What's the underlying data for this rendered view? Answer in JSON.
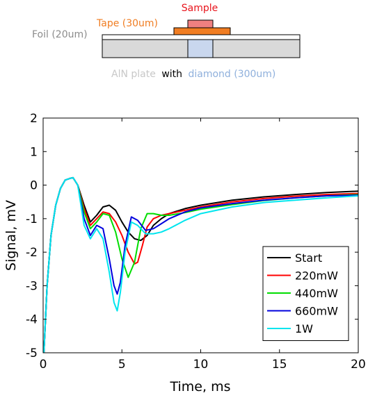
{
  "diagram": {
    "sample_label": "Sample",
    "tape_label": "Tape (30um)",
    "foil_label": "Foil (20um)",
    "plate_label_part1": "AlN plate",
    "plate_label_part2": "with",
    "plate_label_part3": "diamond (300um)",
    "colors": {
      "sample": "#f08080",
      "sample_text": "#e8131b",
      "tape": "#f07d22",
      "foil_text": "#8c8c8c",
      "plate": "#d9d9d9",
      "diamond": "#c9d7ee",
      "plate_text": "#c8c8c8",
      "diamond_text": "#8fb0dc"
    }
  },
  "chart_data": {
    "type": "line",
    "title": "",
    "xlabel": "Time, ms",
    "ylabel": "Signal, mV",
    "xlim": [
      0,
      20
    ],
    "ylim": [
      -5,
      2
    ],
    "xticks": [
      0,
      5,
      10,
      15,
      20
    ],
    "yticks": [
      2,
      1,
      0,
      -1,
      -2,
      -3,
      -4,
      -5
    ],
    "legend_position": "bottom-right",
    "series": [
      {
        "name": "Start",
        "color": "#000000",
        "x": [
          0.05,
          0.25,
          0.5,
          0.8,
          1.1,
          1.4,
          1.7,
          1.9,
          2.2,
          2.6,
          3.0,
          3.4,
          3.8,
          4.2,
          4.6,
          5.0,
          5.4,
          5.8,
          6.2,
          6.6,
          7.0,
          7.5,
          8.0,
          9.0,
          10.0,
          12.0,
          14.0,
          16.0,
          18.0,
          20.0
        ],
        "y": [
          -5.0,
          -3.0,
          -1.5,
          -0.6,
          -0.1,
          0.15,
          0.2,
          0.22,
          0.0,
          -0.6,
          -1.1,
          -0.9,
          -0.65,
          -0.6,
          -0.75,
          -1.1,
          -1.4,
          -1.6,
          -1.65,
          -1.5,
          -1.2,
          -1.0,
          -0.85,
          -0.7,
          -0.6,
          -0.45,
          -0.35,
          -0.28,
          -0.22,
          -0.18
        ]
      },
      {
        "name": "220mW",
        "color": "#ff0000",
        "x": [
          0.05,
          0.25,
          0.5,
          0.8,
          1.1,
          1.4,
          1.7,
          1.9,
          2.2,
          2.6,
          3.0,
          3.4,
          3.8,
          4.2,
          4.6,
          5.0,
          5.4,
          5.8,
          6.0,
          6.3,
          6.6,
          7.0,
          7.5,
          8.0,
          9.0,
          10.0,
          12.0,
          14.0,
          16.0,
          18.0,
          20.0
        ],
        "y": [
          -5.0,
          -3.0,
          -1.5,
          -0.6,
          -0.1,
          0.15,
          0.2,
          0.22,
          0.0,
          -0.7,
          -1.2,
          -1.0,
          -0.8,
          -0.85,
          -1.1,
          -1.5,
          -2.0,
          -2.35,
          -2.3,
          -1.8,
          -1.25,
          -1.0,
          -0.9,
          -0.85,
          -0.75,
          -0.65,
          -0.5,
          -0.4,
          -0.33,
          -0.28,
          -0.25
        ]
      },
      {
        "name": "440mW",
        "color": "#00dd00",
        "x": [
          0.05,
          0.25,
          0.5,
          0.8,
          1.1,
          1.4,
          1.7,
          1.9,
          2.2,
          2.6,
          3.0,
          3.4,
          3.8,
          4.2,
          4.6,
          5.0,
          5.4,
          5.8,
          6.2,
          6.6,
          7.0,
          7.5,
          8.0,
          9.0,
          10.0,
          12.0,
          14.0,
          16.0,
          18.0,
          20.0
        ],
        "y": [
          -5.0,
          -3.0,
          -1.5,
          -0.6,
          -0.1,
          0.15,
          0.2,
          0.22,
          0.0,
          -0.8,
          -1.3,
          -1.1,
          -0.85,
          -0.9,
          -1.4,
          -2.2,
          -2.75,
          -2.3,
          -1.3,
          -0.85,
          -0.85,
          -0.9,
          -0.9,
          -0.82,
          -0.72,
          -0.58,
          -0.46,
          -0.38,
          -0.32,
          -0.28
        ]
      },
      {
        "name": "660mW",
        "color": "#0000dd",
        "x": [
          0.05,
          0.25,
          0.5,
          0.8,
          1.1,
          1.4,
          1.7,
          1.9,
          2.2,
          2.6,
          3.0,
          3.4,
          3.8,
          4.2,
          4.5,
          4.7,
          4.9,
          5.2,
          5.6,
          6.0,
          6.5,
          7.0,
          7.5,
          8.0,
          9.0,
          10.0,
          12.0,
          14.0,
          16.0,
          18.0,
          20.0
        ],
        "y": [
          -5.0,
          -3.0,
          -1.5,
          -0.6,
          -0.1,
          0.15,
          0.2,
          0.22,
          0.0,
          -1.0,
          -1.5,
          -1.2,
          -1.3,
          -2.2,
          -3.0,
          -3.25,
          -2.9,
          -1.8,
          -0.95,
          -1.05,
          -1.35,
          -1.3,
          -1.15,
          -1.0,
          -0.8,
          -0.68,
          -0.55,
          -0.45,
          -0.38,
          -0.32,
          -0.3
        ]
      },
      {
        "name": "1W",
        "color": "#00e5ee",
        "x": [
          0.05,
          0.25,
          0.5,
          0.8,
          1.1,
          1.4,
          1.7,
          1.9,
          2.2,
          2.6,
          3.0,
          3.4,
          3.8,
          4.2,
          4.5,
          4.7,
          4.9,
          5.2,
          5.6,
          6.0,
          6.5,
          7.0,
          7.5,
          8.0,
          9.0,
          10.0,
          12.0,
          14.0,
          16.0,
          18.0,
          20.0
        ],
        "y": [
          -5.0,
          -3.0,
          -1.5,
          -0.6,
          -0.1,
          0.15,
          0.2,
          0.22,
          0.0,
          -1.2,
          -1.6,
          -1.3,
          -1.6,
          -2.6,
          -3.5,
          -3.75,
          -3.2,
          -2.0,
          -1.1,
          -1.2,
          -1.45,
          -1.45,
          -1.4,
          -1.3,
          -1.05,
          -0.85,
          -0.65,
          -0.52,
          -0.45,
          -0.38,
          -0.32
        ]
      }
    ]
  }
}
